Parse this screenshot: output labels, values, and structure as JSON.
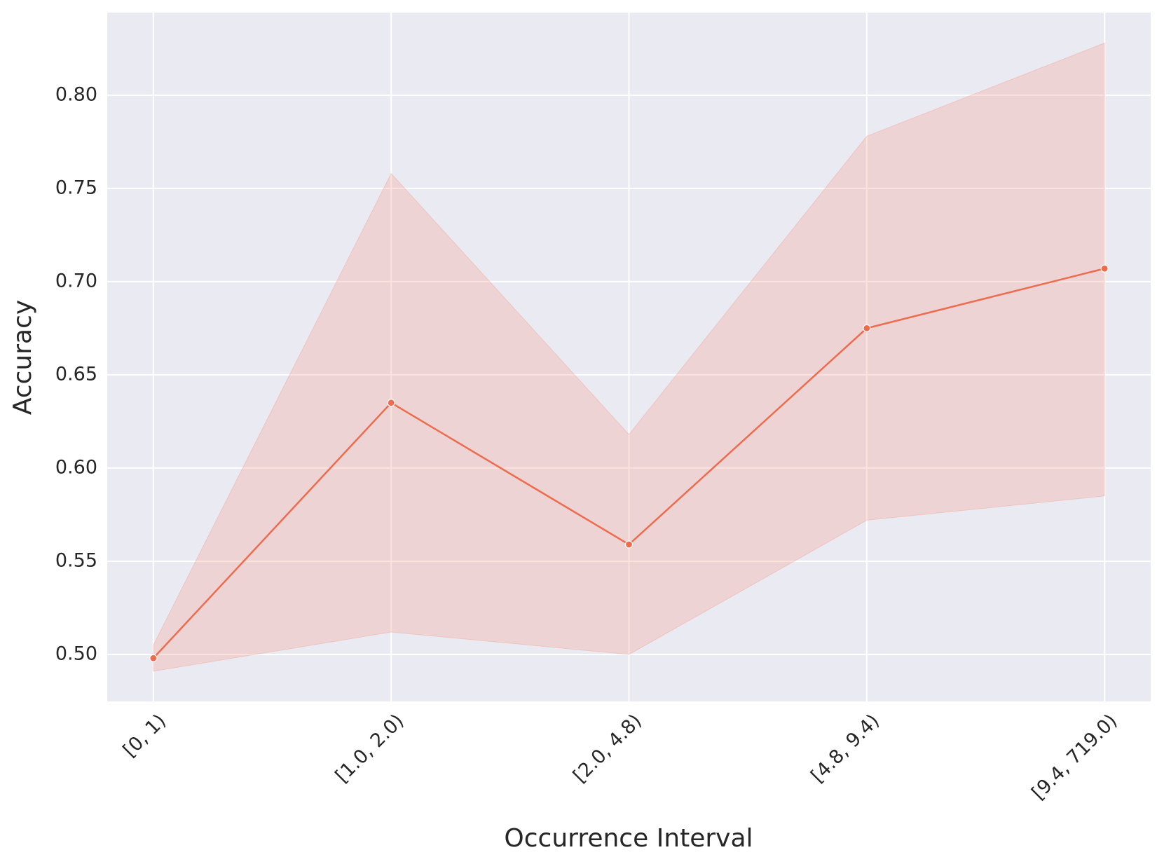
{
  "chart_data": {
    "type": "line",
    "x_label": "Occurrence Interval",
    "y_label": "Accuracy",
    "categories": [
      "[0, 1)",
      "[1.0, 2.0)",
      "[2.0, 4.8)",
      "[4.8, 9.4)",
      "[9.4, 719.0)"
    ],
    "values": [
      0.498,
      0.635,
      0.559,
      0.675,
      0.707
    ],
    "ci_lower": [
      0.491,
      0.512,
      0.5,
      0.572,
      0.585
    ],
    "ci_upper": [
      0.505,
      0.758,
      0.618,
      0.778,
      0.828
    ],
    "color": "#ee6c4d",
    "band_color": "#f4a08f",
    "ylim": [
      0.4748,
      0.8443
    ],
    "yticks": [
      {
        "value": 0.5,
        "label": "0.50"
      },
      {
        "value": 0.55,
        "label": "0.55"
      },
      {
        "value": 0.6,
        "label": "0.60"
      },
      {
        "value": 0.65,
        "label": "0.65"
      },
      {
        "value": 0.7,
        "label": "0.70"
      },
      {
        "value": 0.75,
        "label": "0.75"
      },
      {
        "value": 0.8,
        "label": "0.80"
      }
    ],
    "grid": true
  }
}
